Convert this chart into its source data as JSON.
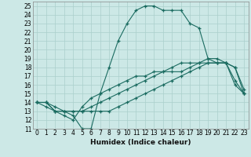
{
  "xlabel": "Humidex (Indice chaleur)",
  "x_ticks": [
    0,
    1,
    2,
    3,
    4,
    5,
    6,
    7,
    8,
    9,
    10,
    11,
    12,
    13,
    14,
    15,
    16,
    17,
    18,
    19,
    20,
    21,
    22,
    23
  ],
  "ylim": [
    11,
    25.5
  ],
  "xlim": [
    -0.5,
    23.5
  ],
  "y_ticks": [
    11,
    12,
    13,
    14,
    15,
    16,
    17,
    18,
    19,
    20,
    21,
    22,
    23,
    24,
    25
  ],
  "bg_color": "#cce8e6",
  "grid_color": "#aacfcc",
  "line_color": "#1a6b60",
  "line1": [
    14.0,
    14.0,
    13.0,
    13.0,
    12.5,
    11.0,
    11.0,
    15.0,
    18.0,
    21.0,
    23.0,
    24.5,
    25.0,
    25.0,
    24.5,
    24.5,
    24.5,
    23.0,
    22.5,
    19.0,
    19.0,
    18.5,
    16.0,
    15.0
  ],
  "line2": [
    14.0,
    14.0,
    13.0,
    13.0,
    13.0,
    13.0,
    13.5,
    14.0,
    14.5,
    15.0,
    15.5,
    16.0,
    16.5,
    17.0,
    17.5,
    18.0,
    18.5,
    18.5,
    18.5,
    18.5,
    18.5,
    18.5,
    18.0,
    15.0
  ],
  "line3": [
    14.0,
    14.0,
    13.5,
    13.0,
    13.0,
    13.0,
    13.0,
    13.0,
    13.0,
    13.5,
    14.0,
    14.5,
    15.0,
    15.5,
    16.0,
    16.5,
    17.0,
    17.5,
    18.0,
    18.5,
    18.5,
    18.5,
    18.0,
    15.5
  ],
  "line4": [
    14.0,
    13.5,
    13.0,
    12.5,
    12.0,
    13.5,
    14.5,
    15.0,
    15.5,
    16.0,
    16.5,
    17.0,
    17.0,
    17.5,
    17.5,
    17.5,
    17.5,
    18.0,
    18.5,
    19.0,
    18.5,
    18.5,
    16.5,
    15.0
  ],
  "tick_fontsize": 5.5,
  "xlabel_fontsize": 6.5
}
